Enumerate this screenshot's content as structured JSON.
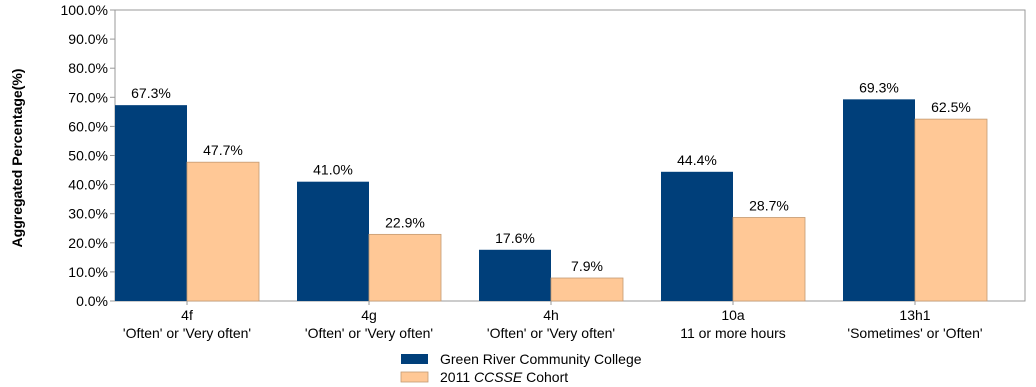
{
  "chart_data": {
    "type": "bar",
    "title": "",
    "xlabel": "",
    "ylabel": "Aggregated Percentage(%)",
    "ylim": [
      0,
      100
    ],
    "yticks": [
      "0.0%",
      "10.0%",
      "20.0%",
      "30.0%",
      "40.0%",
      "50.0%",
      "60.0%",
      "70.0%",
      "80.0%",
      "90.0%",
      "100.0%"
    ],
    "grid": false,
    "legend_position": "bottom",
    "categories": [
      {
        "code": "4f",
        "desc": "'Often' or 'Very often'"
      },
      {
        "code": "4g",
        "desc": "'Often' or 'Very often'"
      },
      {
        "code": "4h",
        "desc": "'Often' or 'Very often'"
      },
      {
        "code": "10a",
        "desc": "11 or more hours"
      },
      {
        "code": "13h1",
        "desc": "'Sometimes' or 'Often'"
      }
    ],
    "series": [
      {
        "name": "Green River Community College",
        "color": "#003f7a",
        "values": [
          67.3,
          41.0,
          17.6,
          44.4,
          69.3
        ],
        "labels": [
          "67.3%",
          "41.0%",
          "17.6%",
          "44.4%",
          "69.3%"
        ]
      },
      {
        "name_prefix": "2011 ",
        "name_italic": "CCSSE",
        "name_suffix": " Cohort",
        "color": "#ffc896",
        "values": [
          47.7,
          22.9,
          7.9,
          28.7,
          62.5
        ],
        "labels": [
          "47.7%",
          "22.9%",
          "7.9%",
          "28.7%",
          "62.5%"
        ]
      }
    ]
  }
}
